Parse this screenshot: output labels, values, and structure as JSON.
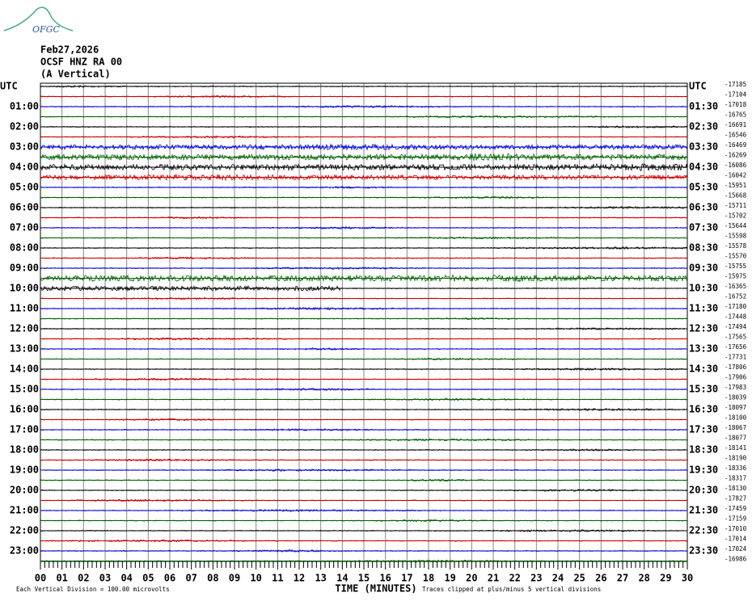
{
  "logo": "OFGC",
  "header": {
    "date": "Feb27,2026",
    "station": "OCSF HNZ RA 00",
    "component": "(A Vertical)"
  },
  "left_labels": [
    "UTC",
    "01:00",
    "02:00",
    "03:00",
    "04:00",
    "05:00",
    "06:00",
    "07:00",
    "08:00",
    "09:00",
    "10:00",
    "11:00",
    "12:00",
    "13:00",
    "14:00",
    "15:00",
    "16:00",
    "17:00",
    "18:00",
    "19:00",
    "20:00",
    "21:00",
    "22:00",
    "23:00"
  ],
  "right_labels": [
    "UTC",
    "01:30",
    "02:30",
    "03:30",
    "04:30",
    "05:30",
    "06:30",
    "07:30",
    "08:30",
    "09:30",
    "10:30",
    "11:30",
    "12:30",
    "13:30",
    "14:30",
    "15:30",
    "16:30",
    "17:30",
    "18:30",
    "19:30",
    "20:30",
    "21:30",
    "22:30",
    "23:30"
  ],
  "trace_offsets": [
    -17185,
    -17104,
    -17018,
    -16765,
    -16691,
    -16546,
    -16469,
    -16269,
    -16086,
    -16042,
    -15951,
    -15668,
    -15711,
    -15702,
    -15644,
    -15598,
    -15578,
    -15570,
    -15755,
    -15975,
    -16365,
    -16752,
    -17180,
    -17448,
    -17494,
    -17565,
    -17656,
    -17731,
    -17806,
    -17906,
    -17983,
    -18039,
    -18097,
    -18100,
    -18067,
    -18077,
    -18141,
    -18190,
    -18336,
    -18317,
    -18130,
    -17827,
    -17459,
    -17159,
    -17010,
    -17014,
    -17024,
    -16986
  ],
  "x_labels": [
    "00",
    "01",
    "02",
    "03",
    "04",
    "05",
    "06",
    "07",
    "08",
    "09",
    "10",
    "11",
    "12",
    "13",
    "14",
    "15",
    "16",
    "17",
    "18",
    "19",
    "20",
    "21",
    "22",
    "23",
    "24",
    "25",
    "26",
    "27",
    "28",
    "29",
    "30"
  ],
  "axis_title": "TIME (MINUTES)",
  "footer_left": "Each Vertical Division =  100.00 microvolts",
  "footer_right": "Traces clipped at plus/minus 5 vertical divisions"
}
